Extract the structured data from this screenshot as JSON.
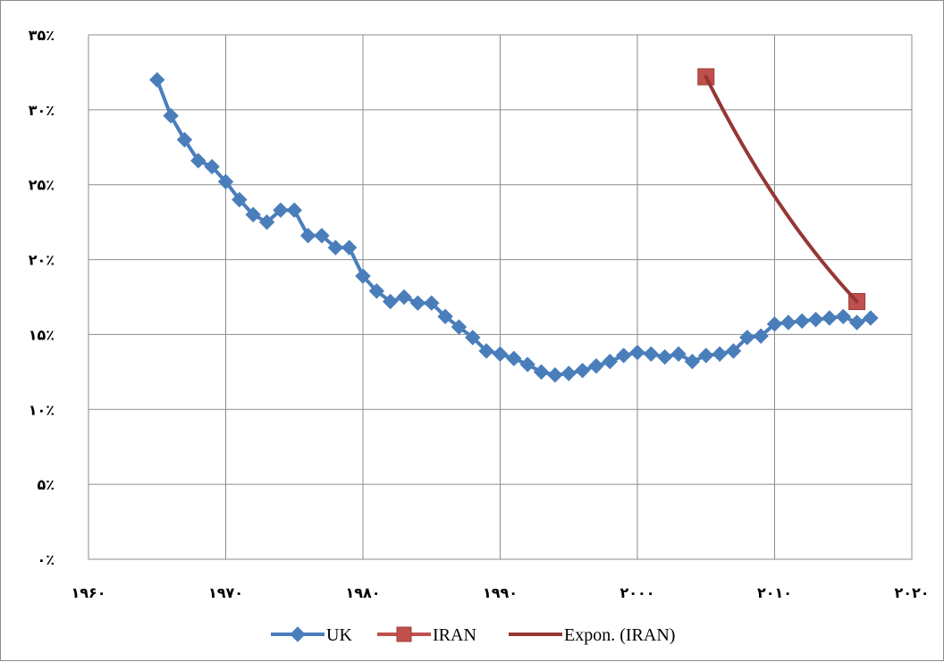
{
  "chart_data": {
    "type": "line",
    "xlim": [
      1960,
      2020
    ],
    "ylim": [
      0,
      35
    ],
    "x_ticks": [
      1960,
      1970,
      1980,
      1990,
      2000,
      2010,
      2020
    ],
    "x_tick_labels": [
      "۱۹۶۰",
      "۱۹۷۰",
      "۱۹۸۰",
      "۱۹۹۰",
      "۲۰۰۰",
      "۲۰۱۰",
      "۲۰۲۰"
    ],
    "y_ticks": [
      0,
      5,
      10,
      15,
      20,
      25,
      30,
      35
    ],
    "y_tick_labels": [
      "۰٪",
      "۵٪",
      "۱۰٪",
      "۱۵٪",
      "۲۰٪",
      "۲۵٪",
      "۳۰٪",
      "۳۵٪"
    ],
    "grid": true,
    "legend_position": "bottom",
    "series": [
      {
        "name": "UK",
        "color": "#4a7ebb",
        "marker": "diamond",
        "x": [
          1965,
          1966,
          1967,
          1968,
          1969,
          1970,
          1971,
          1972,
          1973,
          1974,
          1975,
          1976,
          1977,
          1978,
          1979,
          1980,
          1981,
          1982,
          1983,
          1984,
          1985,
          1986,
          1987,
          1988,
          1989,
          1990,
          1991,
          1992,
          1993,
          1994,
          1995,
          1996,
          1997,
          1998,
          1999,
          2000,
          2001,
          2002,
          2003,
          2004,
          2005,
          2006,
          2007,
          2008,
          2009,
          2010,
          2011,
          2012,
          2013,
          2014,
          2015,
          2016,
          2017
        ],
        "y": [
          32.0,
          29.6,
          28.0,
          26.6,
          26.2,
          25.2,
          24.0,
          23.0,
          22.5,
          23.3,
          23.3,
          21.6,
          21.6,
          20.8,
          20.8,
          18.9,
          17.9,
          17.2,
          17.5,
          17.1,
          17.1,
          16.2,
          15.5,
          14.8,
          13.9,
          13.7,
          13.4,
          13.0,
          12.5,
          12.3,
          12.4,
          12.6,
          12.9,
          13.2,
          13.6,
          13.8,
          13.7,
          13.5,
          13.7,
          13.2,
          13.6,
          13.7,
          13.9,
          14.8,
          14.9,
          15.7,
          15.8,
          15.9,
          16.0,
          16.1,
          16.2,
          15.8,
          16.1
        ]
      },
      {
        "name": "IRAN",
        "color": "#c0504d",
        "marker": "square",
        "x": [
          2005,
          2016
        ],
        "y": [
          32.2,
          17.2
        ]
      },
      {
        "name": "Expon. (IRAN)",
        "color": "#953735",
        "marker": "none",
        "trendline": "exponential",
        "fit_of": "IRAN"
      }
    ]
  }
}
